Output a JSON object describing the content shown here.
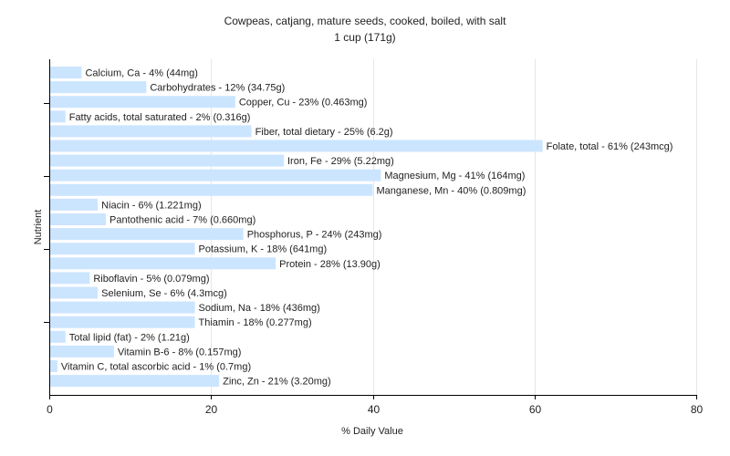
{
  "chart_data": {
    "type": "bar",
    "orientation": "horizontal",
    "title": "Cowpeas, catjang, mature seeds, cooked, boiled, with salt",
    "subtitle": "1 cup (171g)",
    "xlabel": "% Daily Value",
    "ylabel": "Nutrient",
    "xlim": [
      0,
      80
    ],
    "xticks": [
      0,
      20,
      40,
      60,
      80
    ],
    "grid": true,
    "bar_color": "#cce5ff",
    "categories": [
      "Calcium, Ca",
      "Carbohydrates",
      "Copper, Cu",
      "Fatty acids, total saturated",
      "Fiber, total dietary",
      "Folate, total",
      "Iron, Fe",
      "Magnesium, Mg",
      "Manganese, Mn",
      "Niacin",
      "Pantothenic acid",
      "Phosphorus, P",
      "Potassium, K",
      "Protein",
      "Riboflavin",
      "Selenium, Se",
      "Sodium, Na",
      "Thiamin",
      "Total lipid (fat)",
      "Vitamin B-6",
      "Vitamin C, total ascorbic acid",
      "Zinc, Zn"
    ],
    "values": [
      4,
      12,
      23,
      2,
      25,
      61,
      29,
      41,
      40,
      6,
      7,
      24,
      18,
      28,
      5,
      6,
      18,
      18,
      2,
      8,
      1,
      21
    ],
    "labels": [
      "Calcium, Ca - 4% (44mg)",
      "Carbohydrates - 12% (34.75g)",
      "Copper, Cu - 23% (0.463mg)",
      "Fatty acids, total saturated - 2% (0.316g)",
      "Fiber, total dietary - 25% (6.2g)",
      "Folate, total - 61% (243mcg)",
      "Iron, Fe - 29% (5.22mg)",
      "Magnesium, Mg - 41% (164mg)",
      "Manganese, Mn - 40% (0.809mg)",
      "Niacin - 6% (1.221mg)",
      "Pantothenic acid - 7% (0.660mg)",
      "Phosphorus, P - 24% (243mg)",
      "Potassium, K - 18% (641mg)",
      "Protein - 28% (13.90g)",
      "Riboflavin - 5% (0.079mg)",
      "Selenium, Se - 6% (4.3mcg)",
      "Sodium, Na - 18% (436mg)",
      "Thiamin - 18% (0.277mg)",
      "Total lipid (fat) - 2% (1.21g)",
      "Vitamin B-6 - 8% (0.157mg)",
      "Vitamin C, total ascorbic acid - 1% (0.7mg)",
      "Zinc, Zn - 21% (3.20mg)"
    ]
  }
}
